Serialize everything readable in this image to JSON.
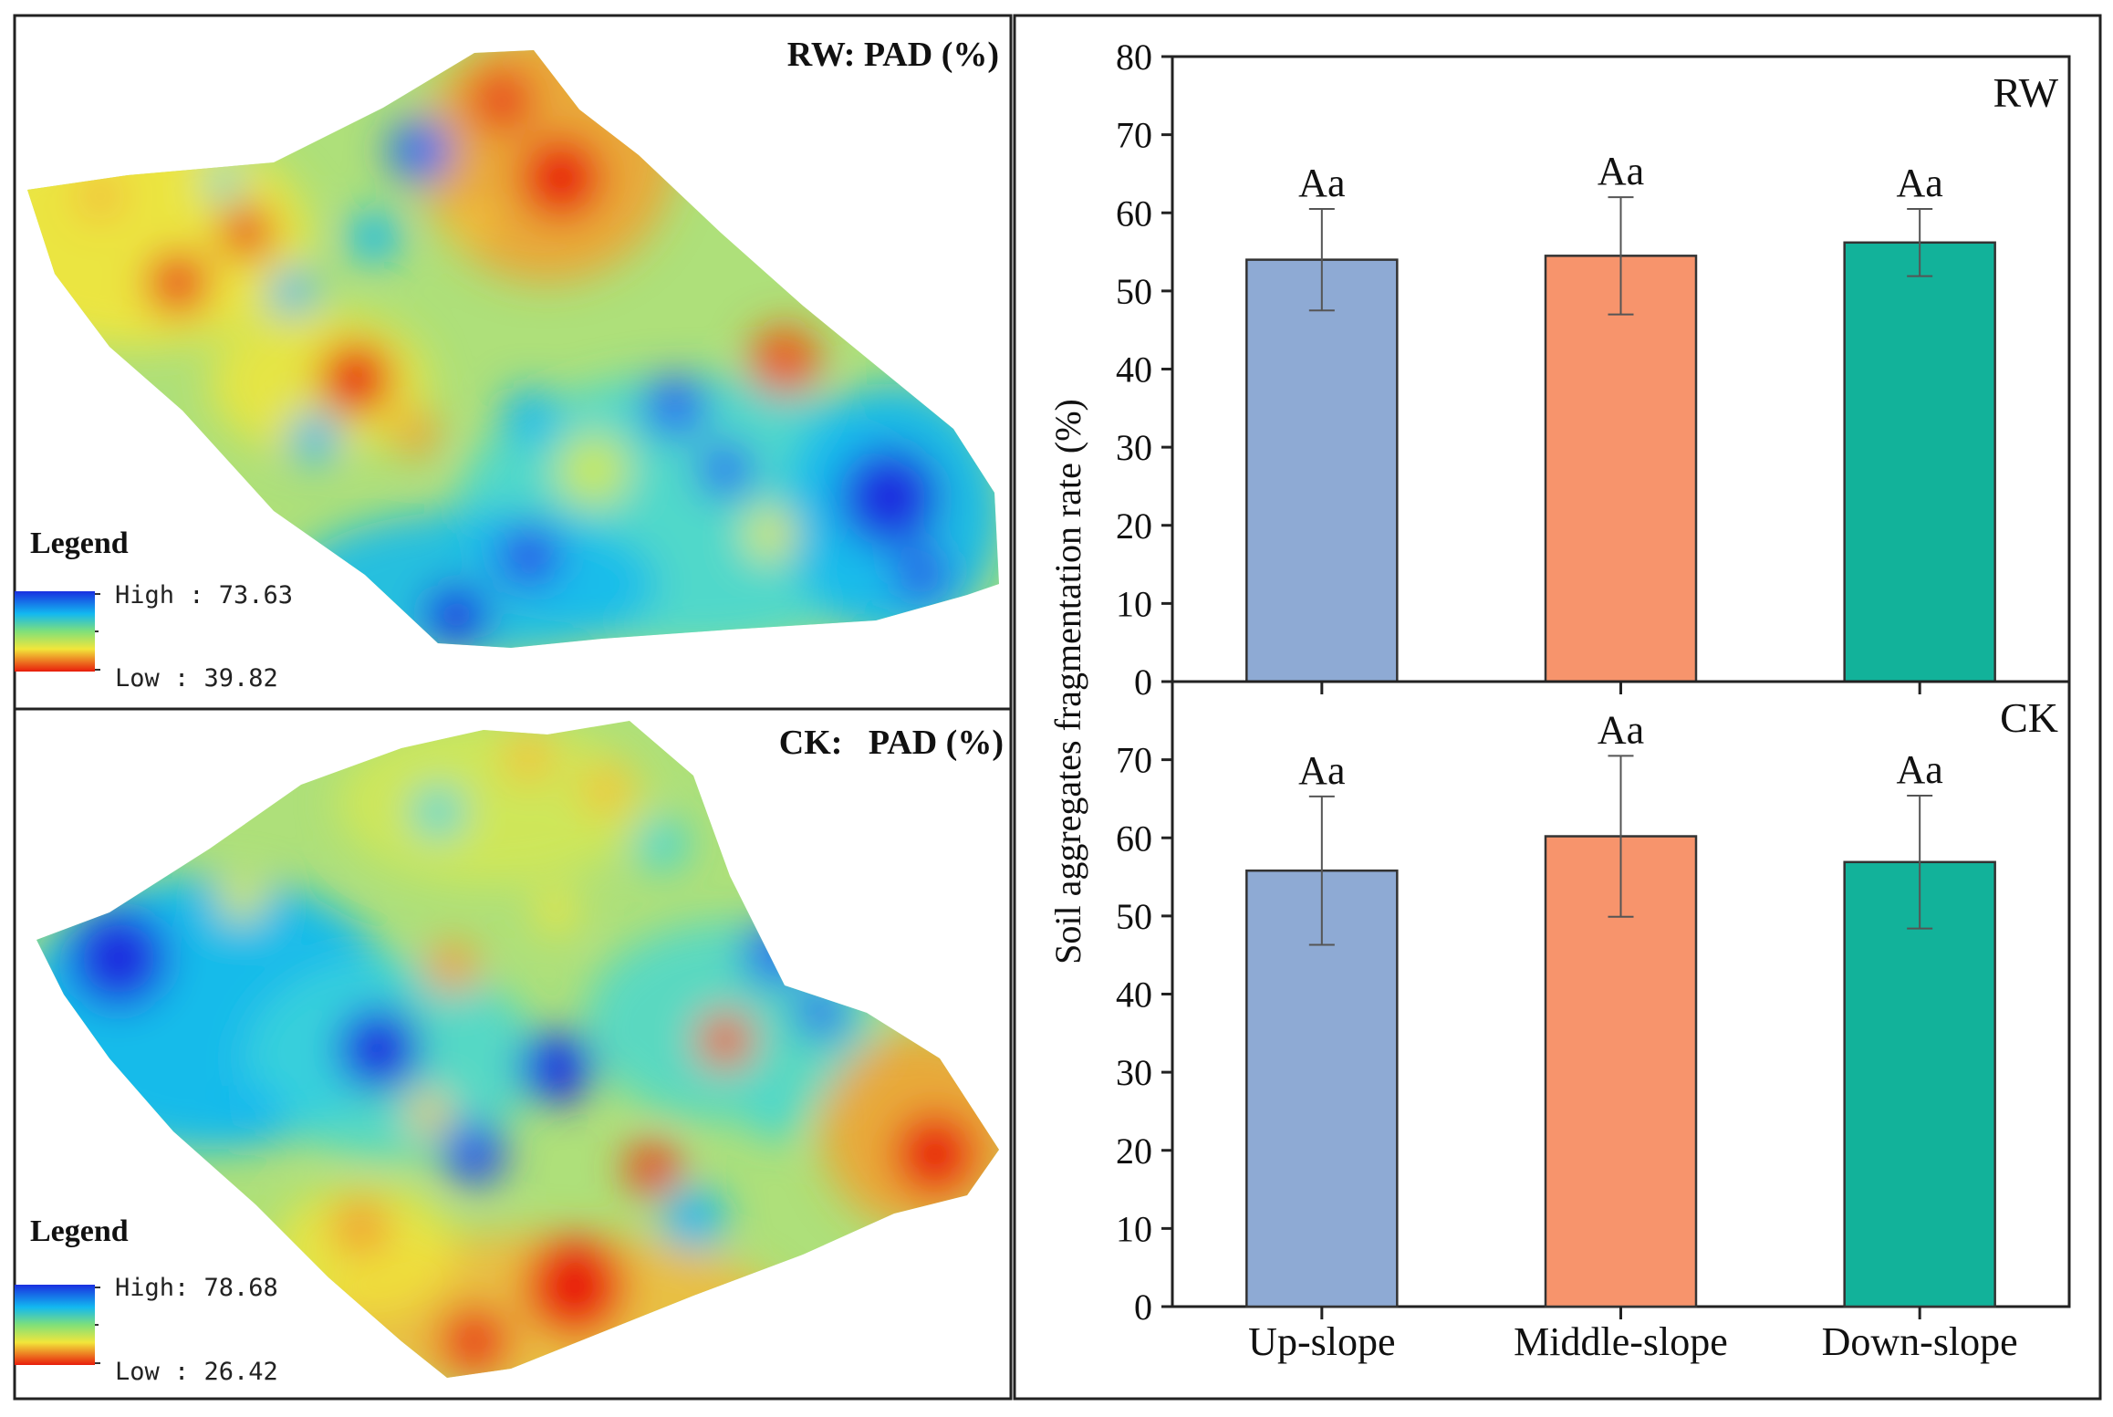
{
  "colors": {
    "high": "#1a2fe0",
    "midhigh": "#12b8f0",
    "mid": "#7fe07a",
    "midlow": "#f2e63a",
    "low": "#e81d0c",
    "field": "#aee07a",
    "frame": "#222222"
  },
  "maps": {
    "rw": {
      "title": "RW: PAD (%)",
      "legend_title": "Legend",
      "legend_high": "High : 73.63",
      "legend_low": "Low : 39.82"
    },
    "ck": {
      "title": "CK:   PAD (%)",
      "legend_title": "Legend",
      "legend_high": "High: 78.68",
      "legend_low": "Low : 26.42"
    }
  },
  "chart_data": [
    {
      "type": "bar",
      "panel_label": "RW",
      "categories": [
        "Up-slope",
        "Middle-slope",
        "Down-slope"
      ],
      "values": [
        54.0,
        54.5,
        56.2
      ],
      "errors": [
        6.5,
        7.5,
        4.3
      ],
      "annotations": [
        "Aa",
        "Aa",
        "Aa"
      ],
      "bar_colors": [
        "#8eaad4",
        "#f7946c",
        "#12b29a"
      ],
      "ylabel": "Soil aggregates fragmentation rate (%)",
      "ylim": [
        0,
        80
      ],
      "yticks": [
        0,
        10,
        20,
        30,
        40,
        50,
        60,
        70,
        80
      ]
    },
    {
      "type": "bar",
      "panel_label": "CK",
      "categories": [
        "Up-slope",
        "Middle-slope",
        "Down-slope"
      ],
      "values": [
        55.8,
        60.2,
        56.9
      ],
      "errors": [
        9.5,
        10.3,
        8.5
      ],
      "annotations": [
        "Aa",
        "Aa",
        "Aa"
      ],
      "bar_colors": [
        "#8eaad4",
        "#f7946c",
        "#12b29a"
      ],
      "ylabel": "Soil aggregates fragmentation rate (%)",
      "ylim": [
        0,
        80
      ],
      "yticks": [
        0,
        10,
        20,
        30,
        40,
        50,
        60,
        70
      ]
    }
  ]
}
